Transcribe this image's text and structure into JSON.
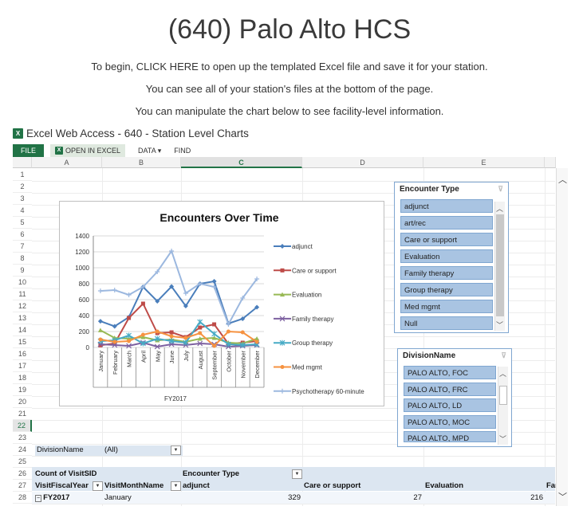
{
  "page": {
    "title": "(640) Palo Alto HCS",
    "intro_lines": [
      "To begin, CLICK HERE to open up the templated Excel file and save it for your station.",
      "You can see all of your station's files at the bottom of the page.",
      "You can manipulate the chart below to see facility-level information."
    ]
  },
  "ewa": {
    "title": "Excel Web Access - 640 - Station Level Charts",
    "icon_text": "X",
    "toolbar": {
      "file": "FILE",
      "open_in_excel": "OPEN IN EXCEL",
      "data": "DATA",
      "data_caret": "▾",
      "find": "FIND"
    }
  },
  "sheet": {
    "columns": [
      "A",
      "B",
      "C",
      "D",
      "E"
    ],
    "rows": [
      "1",
      "2",
      "3",
      "4",
      "5",
      "6",
      "7",
      "8",
      "9",
      "10",
      "11",
      "12",
      "13",
      "14",
      "15",
      "16",
      "17",
      "18",
      "19",
      "20",
      "21",
      "22",
      "23",
      "24",
      "25",
      "26",
      "27",
      "28"
    ],
    "selected_column": "C",
    "selected_row": "22"
  },
  "slicer_encounter": {
    "title": "Encounter Type",
    "items": [
      "adjunct",
      "art/rec",
      "Care or support",
      "Evaluation",
      "Family therapy",
      "Group therapy",
      "Med mgmt",
      "Null"
    ]
  },
  "slicer_division": {
    "title": "DivisionName",
    "items": [
      "PALO ALTO, FOC",
      "PALO ALTO, FRC",
      "PALO ALTO, LD",
      "PALO ALTO, MOC",
      "PALO ALTO, MPD"
    ]
  },
  "pivot": {
    "filter_label": "DivisionName",
    "filter_value": "(All)",
    "count_label": "Count of VisitSID",
    "encounter_header": "Encounter Type",
    "fiscal_year_header": "VisitFiscalYear",
    "month_header": "VisitMonthName",
    "col_adjunct": "adjunct",
    "col_care": "Care or support",
    "col_eval": "Evaluation",
    "col_fam": "Far",
    "row_year": "FY2017",
    "row_month": "January",
    "val_adjunct": "329",
    "val_care": "27",
    "val_eval": "216"
  },
  "chart_data": {
    "type": "line",
    "title": "Encounters Over Time",
    "xlabel": "FY2017",
    "ylabel": "",
    "ylim": [
      0,
      1400
    ],
    "yticks": [
      0,
      200,
      400,
      600,
      800,
      1000,
      1200,
      1400
    ],
    "categories": [
      "January",
      "February",
      "March",
      "April",
      "May",
      "June",
      "July",
      "August",
      "September",
      "October",
      "November",
      "December"
    ],
    "series": [
      {
        "name": "adjunct",
        "color": "#4a7ebb",
        "marker": "diamond",
        "values": [
          329,
          265,
          380,
          760,
          580,
          765,
          520,
          800,
          830,
          300,
          360,
          505
        ]
      },
      {
        "name": "Care or support",
        "color": "#be4b48",
        "marker": "square",
        "values": [
          27,
          50,
          370,
          550,
          180,
          190,
          130,
          250,
          290,
          45,
          60,
          80
        ]
      },
      {
        "name": "Evaluation",
        "color": "#98b954",
        "marker": "triangle",
        "values": [
          216,
          120,
          110,
          130,
          90,
          100,
          70,
          110,
          120,
          60,
          50,
          110
        ]
      },
      {
        "name": "Family therapy",
        "color": "#7d60a0",
        "marker": "x",
        "values": [
          40,
          30,
          20,
          60,
          10,
          40,
          30,
          50,
          40,
          10,
          20,
          30
        ]
      },
      {
        "name": "Group therapy",
        "color": "#46aac5",
        "marker": "star",
        "values": [
          80,
          90,
          150,
          50,
          110,
          80,
          60,
          320,
          170,
          40,
          30,
          40
        ]
      },
      {
        "name": "Med mgmt",
        "color": "#f69240",
        "marker": "circle",
        "values": [
          100,
          70,
          80,
          160,
          200,
          140,
          120,
          180,
          20,
          200,
          190,
          70
        ]
      },
      {
        "name": "Psychotherapy 60-minute",
        "color": "#9cb8df",
        "marker": "plus",
        "values": [
          710,
          720,
          660,
          760,
          950,
          1210,
          680,
          800,
          760,
          290,
          620,
          860
        ]
      }
    ]
  },
  "colors": {
    "accent": "#217346",
    "slicer_item": "#a9c4e2",
    "pivot_band": "#dce6f1"
  }
}
